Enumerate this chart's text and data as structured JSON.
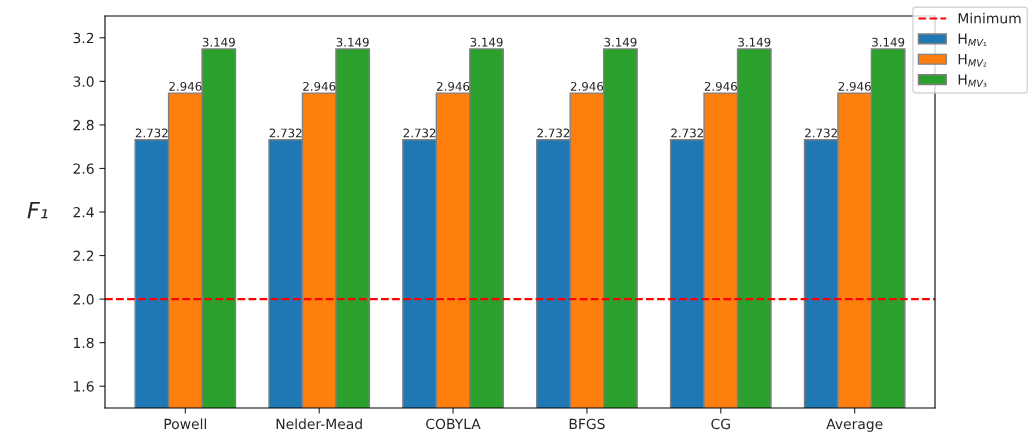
{
  "chart_data": {
    "type": "bar",
    "ylabel": "F₁",
    "categories": [
      "Powell",
      "Nelder-Mead",
      "COBYLA",
      "BFGS",
      "CG",
      "Average"
    ],
    "series": [
      {
        "name": "H$_{MV₁}$",
        "color": "#1f77b4",
        "values": [
          2.732,
          2.732,
          2.732,
          2.732,
          2.732,
          2.732
        ]
      },
      {
        "name": "H$_{MV₂}$",
        "color": "#ff7f0e",
        "values": [
          2.946,
          2.946,
          2.946,
          2.946,
          2.946,
          2.946
        ]
      },
      {
        "name": "H$_{MV₃}$",
        "color": "#2ca02c",
        "values": [
          3.149,
          3.149,
          3.149,
          3.149,
          3.149,
          3.149
        ]
      }
    ],
    "ylim": [
      1.5,
      3.3
    ],
    "yticks": [
      1.6,
      1.8,
      {
        "value": 2,
        "label": "2.0"
      },
      2.2,
      2.4,
      2.6,
      2.8,
      {
        "value": 3,
        "label": "3.0"
      },
      3.2
    ],
    "ref_lines": [
      {
        "axis": "y",
        "value": 2.0,
        "label": "Minimum",
        "color": "#ff0000",
        "line_style": "dashed"
      }
    ],
    "data_labels": true,
    "grid": false,
    "legend": "top right"
  }
}
